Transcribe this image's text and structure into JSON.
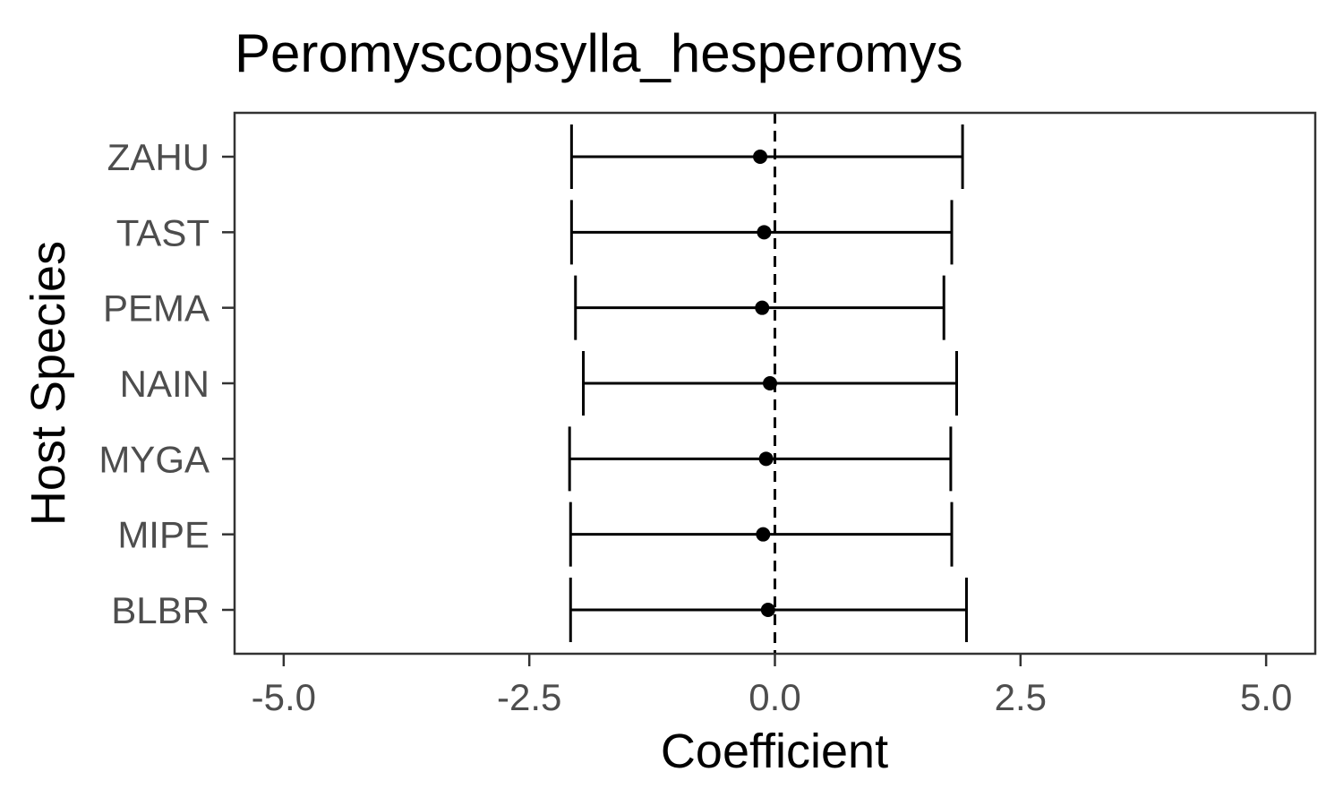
{
  "chart_data": {
    "type": "scatter",
    "variant": "coefficient-plot-with-error-bars",
    "title": "Peromyscopsylla_hesperomys",
    "xlabel": "Coefficient",
    "ylabel": "Host Species",
    "xlim": [
      -5.5,
      5.5
    ],
    "x_ticks": [
      -5.0,
      -2.5,
      0.0,
      2.5,
      5.0
    ],
    "x_tick_labels": [
      "-5.0",
      "-2.5",
      "0.0",
      "2.5",
      "5.0"
    ],
    "reference_line": {
      "x": 0,
      "style": "dashed"
    },
    "grid": false,
    "legend": "none",
    "categories": [
      "ZAHU",
      "TAST",
      "PEMA",
      "NAIN",
      "MYGA",
      "MIPE",
      "BLBR"
    ],
    "estimates": [
      -0.15,
      -0.11,
      -0.13,
      -0.05,
      -0.09,
      -0.12,
      -0.07
    ],
    "lower": [
      -2.07,
      -2.07,
      -2.03,
      -1.95,
      -2.09,
      -2.08,
      -2.08
    ],
    "upper": [
      1.91,
      1.8,
      1.72,
      1.85,
      1.79,
      1.8,
      1.95
    ],
    "colors": {
      "points": "#000000",
      "error_bars": "#000000",
      "panel_border": "#333333",
      "tick_labels": "#4d4d4d"
    }
  }
}
